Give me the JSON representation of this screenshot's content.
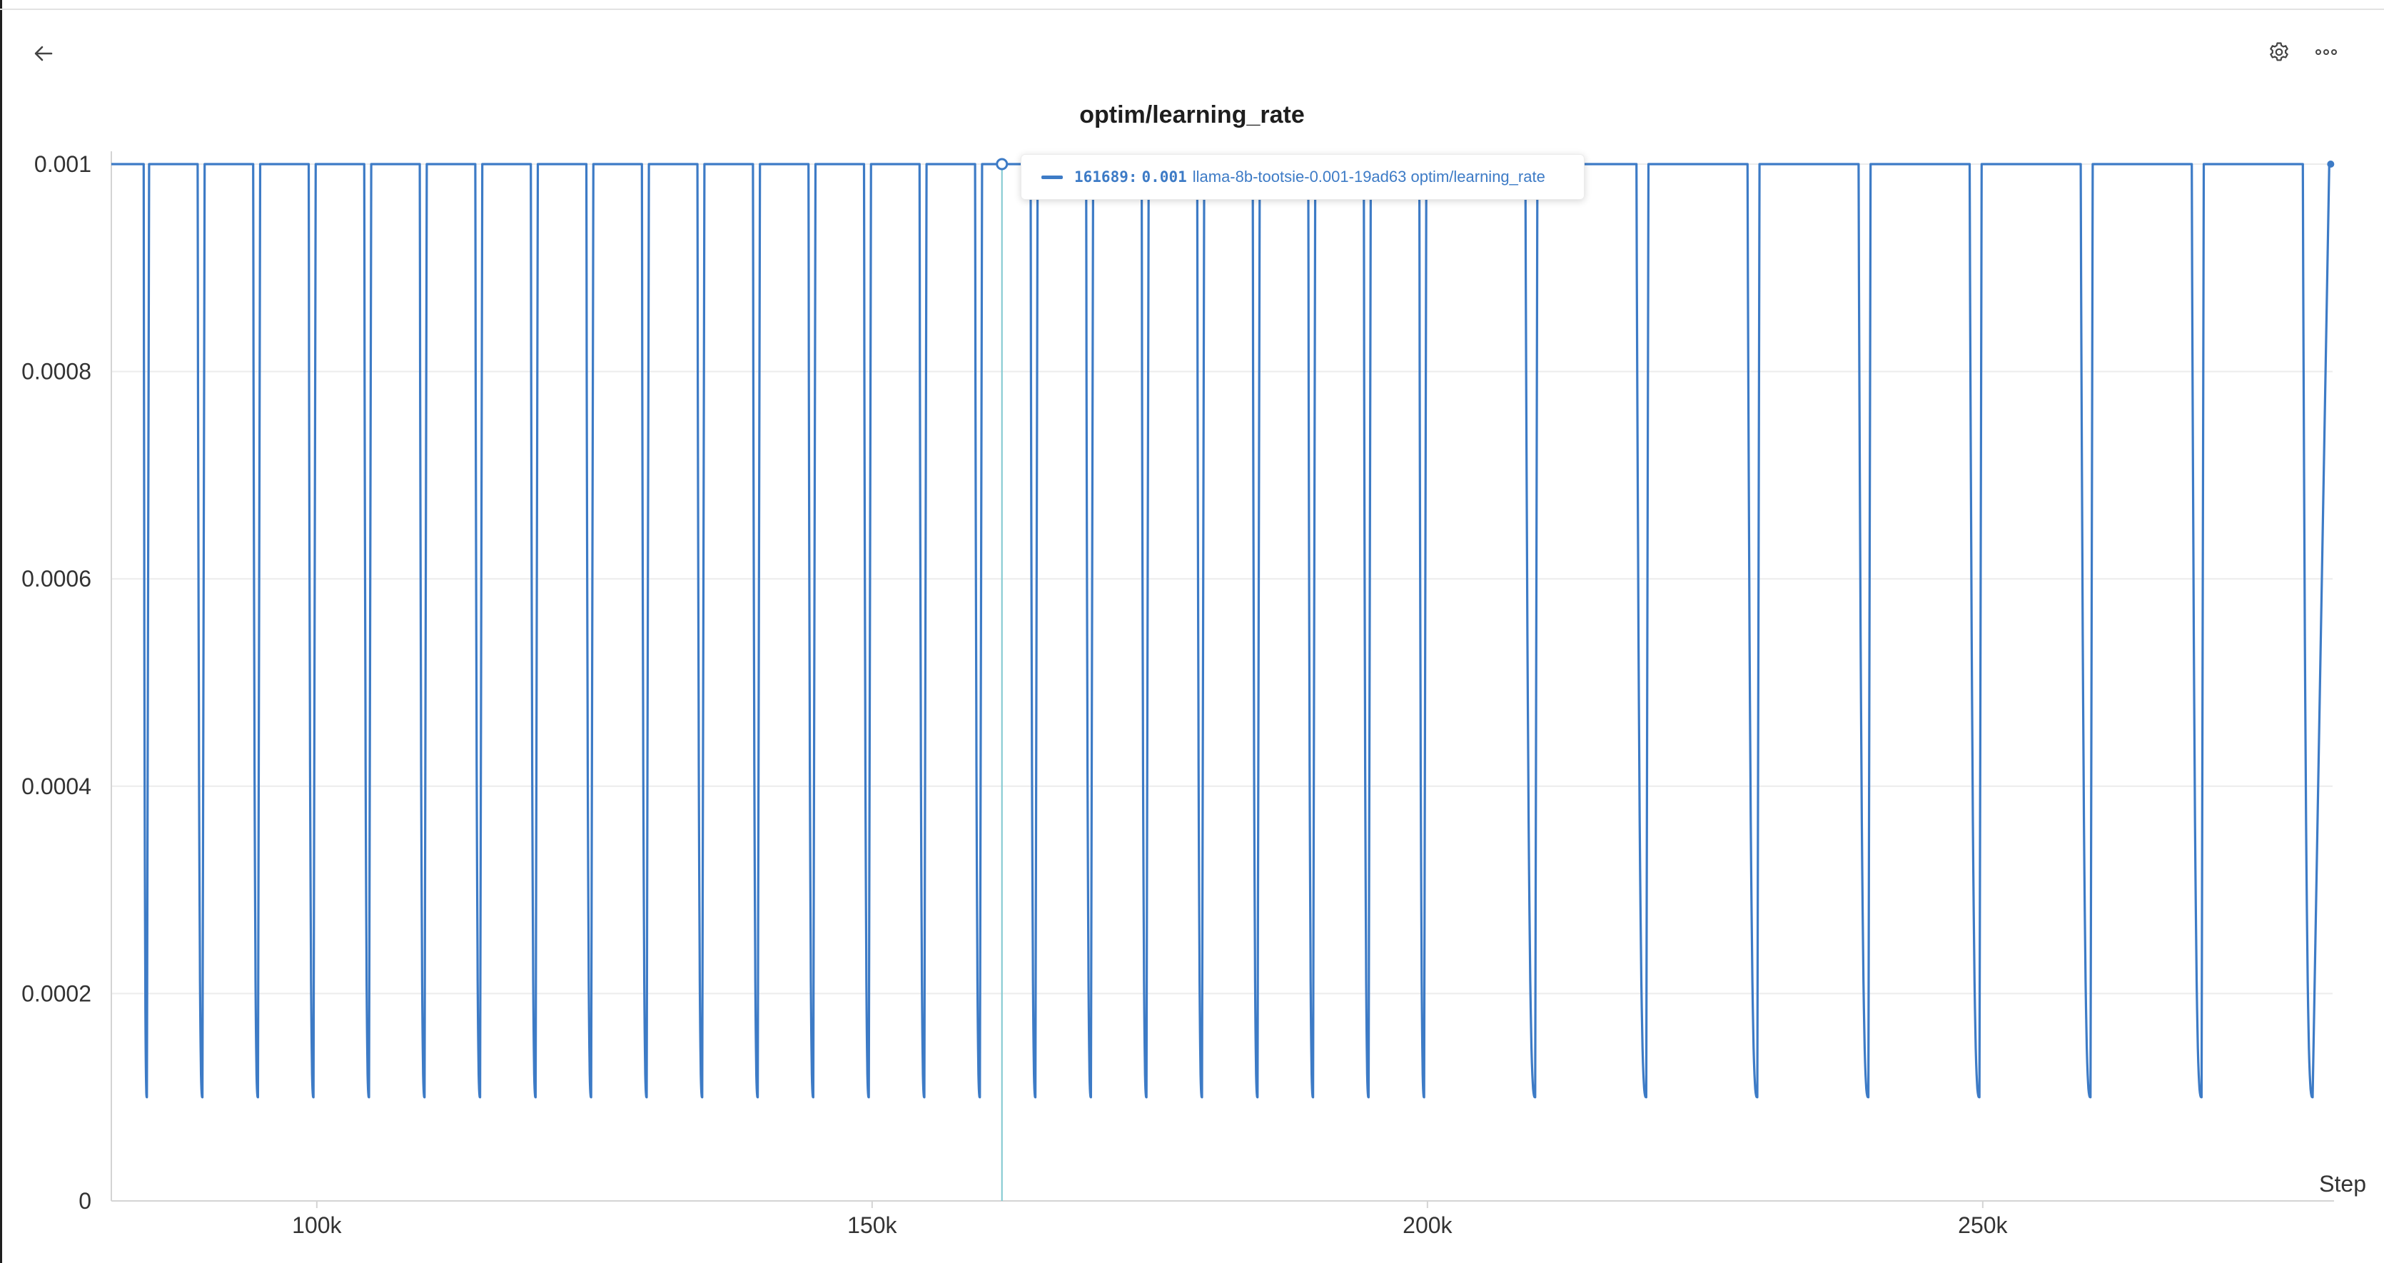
{
  "header": {
    "back_icon": "arrow-left-icon",
    "settings_icon": "gear-icon",
    "more_icon": "more-horizontal-icon"
  },
  "tooltip": {
    "step": "161689",
    "separator": ":",
    "value": "0.001",
    "label": "llama-8b-tootsie-0.001-19ad63 optim/learning_rate"
  },
  "chart_data": {
    "type": "line",
    "title": "optim/learning_rate",
    "xlabel": "Step",
    "ylabel": "",
    "xlim": [
      81500,
      281500
    ],
    "ylim": [
      0,
      0.001
    ],
    "grid": true,
    "x_ticks": [
      {
        "value": 100000,
        "label": "100k"
      },
      {
        "value": 150000,
        "label": "150k"
      },
      {
        "value": 200000,
        "label": "200k"
      },
      {
        "value": 250000,
        "label": "250k"
      }
    ],
    "y_ticks": [
      {
        "value": 0,
        "label": "0"
      },
      {
        "value": 0.0002,
        "label": "0.0002"
      },
      {
        "value": 0.0004,
        "label": "0.0004"
      },
      {
        "value": 0.0006,
        "label": "0.0006"
      },
      {
        "value": 0.0008,
        "label": "0.0008"
      },
      {
        "value": 0.001,
        "label": "0.001"
      }
    ],
    "series": [
      {
        "color": "#3d7bc6",
        "cycles": [
          {
            "start": 81500,
            "min_step": 84700
          },
          {
            "start": 84900,
            "min_step": 89700
          },
          {
            "start": 89900,
            "min_step": 94700
          },
          {
            "start": 94900,
            "min_step": 99700
          },
          {
            "start": 99900,
            "min_step": 104700
          },
          {
            "start": 104900,
            "min_step": 109700
          },
          {
            "start": 109900,
            "min_step": 114700
          },
          {
            "start": 114900,
            "min_step": 119700
          },
          {
            "start": 119900,
            "min_step": 124700
          },
          {
            "start": 124900,
            "min_step": 129700
          },
          {
            "start": 129900,
            "min_step": 134700
          },
          {
            "start": 134900,
            "min_step": 139700
          },
          {
            "start": 139900,
            "min_step": 144700
          },
          {
            "start": 144900,
            "min_step": 149700
          },
          {
            "start": 149900,
            "min_step": 154700
          },
          {
            "start": 154900,
            "min_step": 159700
          },
          {
            "start": 159900,
            "min_step": 164700
          },
          {
            "start": 164900,
            "min_step": 169700
          },
          {
            "start": 169900,
            "min_step": 174700
          },
          {
            "start": 174900,
            "min_step": 179700
          },
          {
            "start": 179900,
            "min_step": 184700
          },
          {
            "start": 184900,
            "min_step": 189700
          },
          {
            "start": 189900,
            "min_step": 194700
          },
          {
            "start": 194900,
            "min_step": 199700
          },
          {
            "start": 199900,
            "min_step": 209700
          },
          {
            "start": 209900,
            "min_step": 219700
          },
          {
            "start": 219900,
            "min_step": 229700
          },
          {
            "start": 229900,
            "min_step": 239700
          },
          {
            "start": 239900,
            "min_step": 249700
          },
          {
            "start": 249900,
            "min_step": 259700
          },
          {
            "start": 259900,
            "min_step": 269700
          },
          {
            "start": 269900,
            "min_step": 279700
          }
        ],
        "high": 0.001,
        "low": 0.0001,
        "end_step": 281200
      }
    ],
    "hover": {
      "step": 161689,
      "value": 0.001
    }
  }
}
